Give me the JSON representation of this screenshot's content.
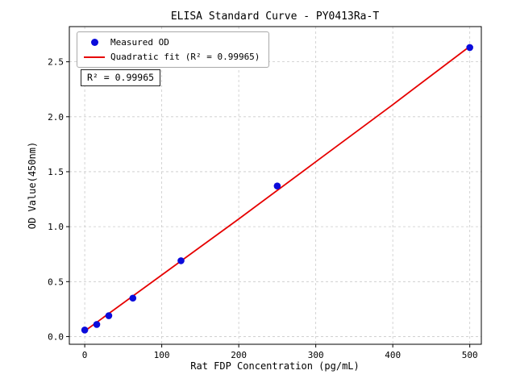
{
  "chart_data": {
    "type": "scatter",
    "title": "ELISA Standard Curve - PY0413Ra-T",
    "xlabel": "Rat FDP Concentration (pg/mL)",
    "ylabel": "OD Value(450nm)",
    "x_ticks": [
      0,
      100,
      200,
      300,
      400,
      500
    ],
    "x_tick_labels": [
      "0",
      "100",
      "200",
      "300",
      "400",
      "500"
    ],
    "y_ticks": [
      0,
      0.5,
      1.0,
      1.5,
      2.0,
      2.5
    ],
    "y_tick_labels": [
      "0.0",
      "0.5",
      "1.0",
      "1.5",
      "2.0",
      "2.5"
    ],
    "xlim": [
      -20,
      515
    ],
    "ylim": [
      -0.07,
      2.82
    ],
    "grid": true,
    "grid_style": "dashed",
    "legend_position": "upper-left",
    "series": [
      {
        "name": "Measured OD",
        "kind": "scatter",
        "color": "#0b0bdb",
        "points": [
          [
            0,
            0.06
          ],
          [
            15.6,
            0.11
          ],
          [
            31.25,
            0.19
          ],
          [
            62.5,
            0.35
          ],
          [
            125,
            0.69
          ],
          [
            250,
            1.37
          ],
          [
            500,
            2.63
          ]
        ]
      },
      {
        "name": "Quadratic fit (R² = 0.99965)",
        "kind": "line",
        "color": "#e60000",
        "points": [
          [
            0,
            0.05
          ],
          [
            100,
            0.56
          ],
          [
            200,
            1.07
          ],
          [
            300,
            1.59
          ],
          [
            400,
            2.11
          ],
          [
            500,
            2.64
          ]
        ]
      }
    ],
    "annotation": {
      "text": "R² = 0.99965"
    },
    "r_squared": 0.99965
  }
}
